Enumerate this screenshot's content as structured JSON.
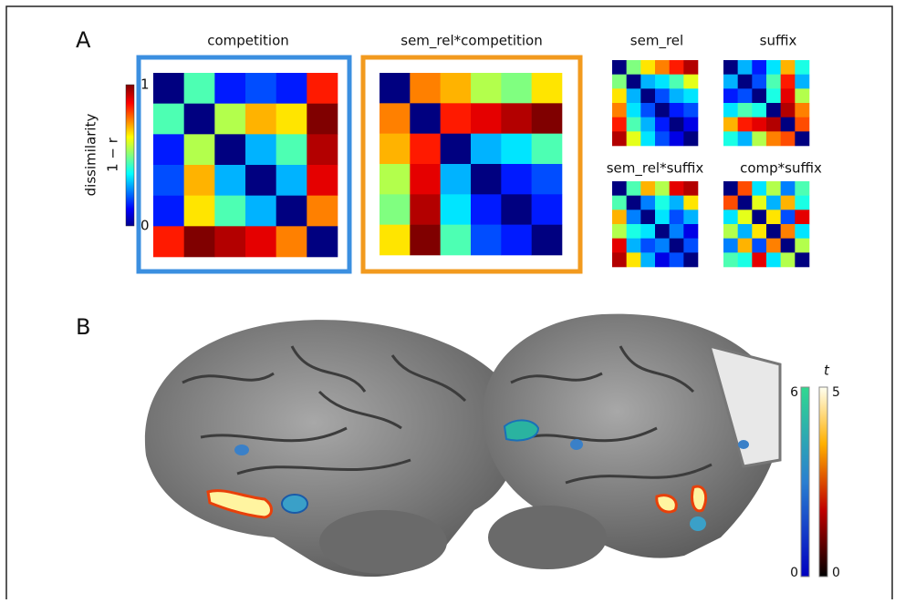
{
  "panel_a": {
    "label": "A",
    "colorbar": {
      "title": "dissimilarity",
      "sublabel": "1 − r",
      "ticks": [
        0,
        1
      ]
    },
    "matrices": [
      {
        "title": "competition",
        "values": [
          [
            0,
            0.45,
            0.15,
            0.2,
            0.15,
            0.85
          ],
          [
            0.45,
            0,
            0.55,
            0.7,
            0.65,
            1
          ],
          [
            0.15,
            0.55,
            0,
            0.3,
            0.45,
            0.95
          ],
          [
            0.2,
            0.7,
            0.3,
            0,
            0.3,
            0.9
          ],
          [
            0.15,
            0.65,
            0.45,
            0.3,
            0,
            0.75
          ],
          [
            0.85,
            1,
            0.95,
            0.9,
            0.75,
            0
          ]
        ]
      },
      {
        "title": "sem_rel*competition",
        "values": [
          [
            0,
            0.75,
            0.7,
            0.55,
            0.5,
            0.65
          ],
          [
            0.75,
            0,
            0.85,
            0.9,
            0.95,
            1
          ],
          [
            0.7,
            0.85,
            0,
            0.3,
            0.35,
            0.45
          ],
          [
            0.55,
            0.9,
            0.3,
            0,
            0.15,
            0.2
          ],
          [
            0.5,
            0.95,
            0.35,
            0.15,
            0,
            0.15
          ],
          [
            0.65,
            1,
            0.45,
            0.2,
            0.15,
            0
          ]
        ]
      },
      {
        "title": "sem_rel",
        "values": [
          [
            0,
            0.5,
            0.65,
            0.75,
            0.85,
            0.95
          ],
          [
            0.5,
            0,
            0.3,
            0.35,
            0.45,
            0.6
          ],
          [
            0.65,
            0.3,
            0,
            0.2,
            0.3,
            0.35
          ],
          [
            0.75,
            0.35,
            0.2,
            0,
            0.15,
            0.2
          ],
          [
            0.85,
            0.45,
            0.3,
            0.15,
            0,
            0.1
          ],
          [
            0.95,
            0.6,
            0.35,
            0.2,
            0.1,
            0
          ]
        ]
      },
      {
        "title": "suffix",
        "values": [
          [
            0,
            0.3,
            0.15,
            0.35,
            0.7,
            0.4
          ],
          [
            0.3,
            0,
            0.2,
            0.45,
            0.85,
            0.3
          ],
          [
            0.15,
            0.2,
            0,
            0.4,
            0.9,
            0.55
          ],
          [
            0.35,
            0.45,
            0.4,
            0,
            0.95,
            0.75
          ],
          [
            0.7,
            0.85,
            0.9,
            0.95,
            0,
            0.8
          ],
          [
            0.4,
            0.3,
            0.55,
            0.75,
            0.8,
            0
          ]
        ]
      },
      {
        "title": "sem_rel*suffix",
        "values": [
          [
            0,
            0.45,
            0.7,
            0.55,
            0.9,
            0.95
          ],
          [
            0.45,
            0,
            0.25,
            0.4,
            0.3,
            0.65
          ],
          [
            0.7,
            0.25,
            0,
            0.35,
            0.2,
            0.3
          ],
          [
            0.55,
            0.4,
            0.35,
            0,
            0.25,
            0.1
          ],
          [
            0.9,
            0.3,
            0.2,
            0.25,
            0,
            0.2
          ],
          [
            0.95,
            0.65,
            0.3,
            0.1,
            0.2,
            0
          ]
        ]
      },
      {
        "title": "comp*suffix",
        "values": [
          [
            0,
            0.8,
            0.35,
            0.55,
            0.25,
            0.45
          ],
          [
            0.8,
            0,
            0.6,
            0.3,
            0.7,
            0.4
          ],
          [
            0.35,
            0.6,
            0,
            0.65,
            0.2,
            0.9
          ],
          [
            0.55,
            0.3,
            0.65,
            0,
            0.75,
            0.35
          ],
          [
            0.25,
            0.7,
            0.2,
            0.75,
            0,
            0.55
          ],
          [
            0.45,
            0.4,
            0.9,
            0.35,
            0.55,
            0
          ]
        ]
      }
    ]
  },
  "panel_b": {
    "label": "B",
    "colorbar": {
      "title": "t",
      "left_ticks": [
        0,
        6
      ],
      "right_ticks": [
        0,
        5
      ]
    }
  }
}
